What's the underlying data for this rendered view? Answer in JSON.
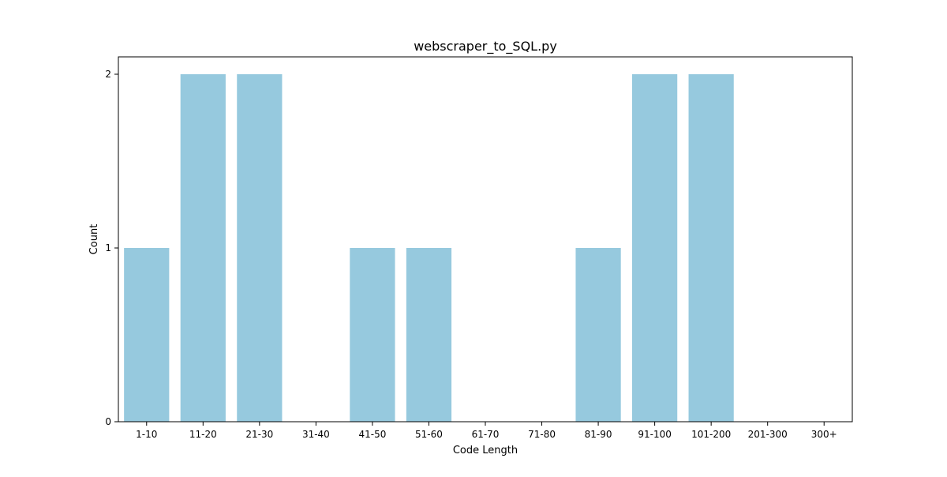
{
  "chart_data": {
    "type": "bar",
    "title": "webscraper_to_SQL.py",
    "xlabel": "Code Length",
    "ylabel": "Count",
    "categories": [
      "1-10",
      "11-20",
      "21-30",
      "31-40",
      "41-50",
      "51-60",
      "61-70",
      "71-80",
      "81-90",
      "91-100",
      "101-200",
      "201-300",
      "300+"
    ],
    "values": [
      1,
      2,
      2,
      0,
      1,
      1,
      0,
      0,
      1,
      2,
      2,
      0,
      0
    ],
    "ylim": [
      0,
      2.1
    ],
    "yticks": [
      "0",
      "1",
      "2"
    ],
    "bar_color": "#96c9de",
    "grid": false,
    "legend": false
  }
}
